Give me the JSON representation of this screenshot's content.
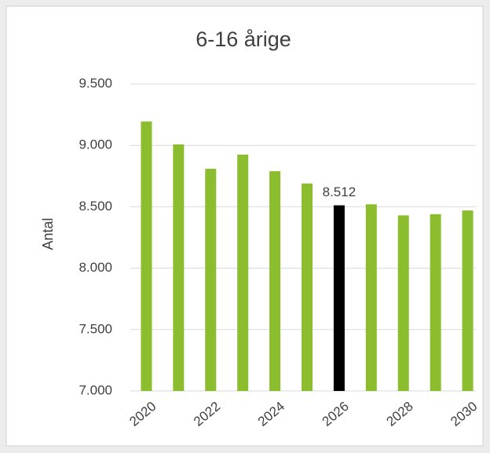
{
  "chart_data": {
    "type": "bar",
    "title": "6-16 årige",
    "y_label": "Antal",
    "categories": [
      "2020",
      null,
      "2022",
      null,
      "2024",
      null,
      "2026",
      null,
      "2028",
      null,
      "2030"
    ],
    "values": [
      9195,
      9008,
      8810,
      8925,
      8790,
      8690,
      8512,
      8520,
      8430,
      8440,
      8470
    ],
    "value_labels": [
      null,
      null,
      null,
      null,
      null,
      null,
      "8.512",
      null,
      null,
      null,
      null
    ],
    "colors": [
      "#8cbd2f",
      "#8cbd2f",
      "#8cbd2f",
      "#8cbd2f",
      "#8cbd2f",
      "#8cbd2f",
      "#000000",
      "#8cbd2f",
      "#8cbd2f",
      "#8cbd2f",
      "#8cbd2f"
    ],
    "ylim": [
      7000,
      9500
    ],
    "yticks": [
      {
        "value": 7000,
        "label": "7.000"
      },
      {
        "value": 7500,
        "label": "7.500"
      },
      {
        "value": 8000,
        "label": "8.000"
      },
      {
        "value": 8500,
        "label": "8.500"
      },
      {
        "value": 9000,
        "label": "9.000"
      },
      {
        "value": 9500,
        "label": "9.500"
      }
    ],
    "grid": true
  }
}
